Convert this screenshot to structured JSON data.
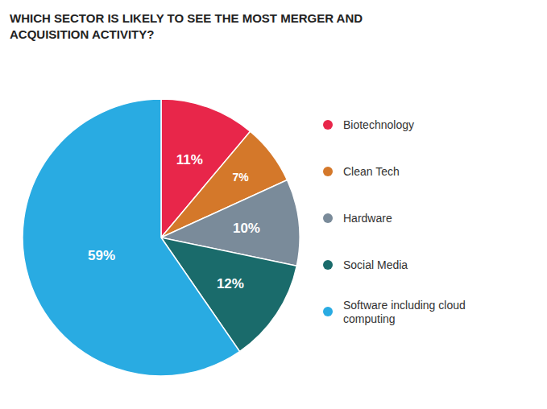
{
  "chart_data": {
    "type": "pie",
    "title": "WHICH SECTOR IS LIKELY TO SEE THE MOST MERGER AND\nACQUISITION ACTIVITY?",
    "categories": [
      "Biotechnology",
      "Clean Tech",
      "Hardware",
      "Social Media",
      "Software including cloud\ncomputing"
    ],
    "values": [
      11,
      7,
      10,
      12,
      59
    ],
    "value_labels": [
      "11%",
      "7%",
      "10%",
      "12%",
      "59%"
    ],
    "colors": [
      "#e8264a",
      "#d4782a",
      "#7a8b9a",
      "#1a6b6b",
      "#29abe2"
    ],
    "data_labels": true,
    "legend": "right"
  }
}
